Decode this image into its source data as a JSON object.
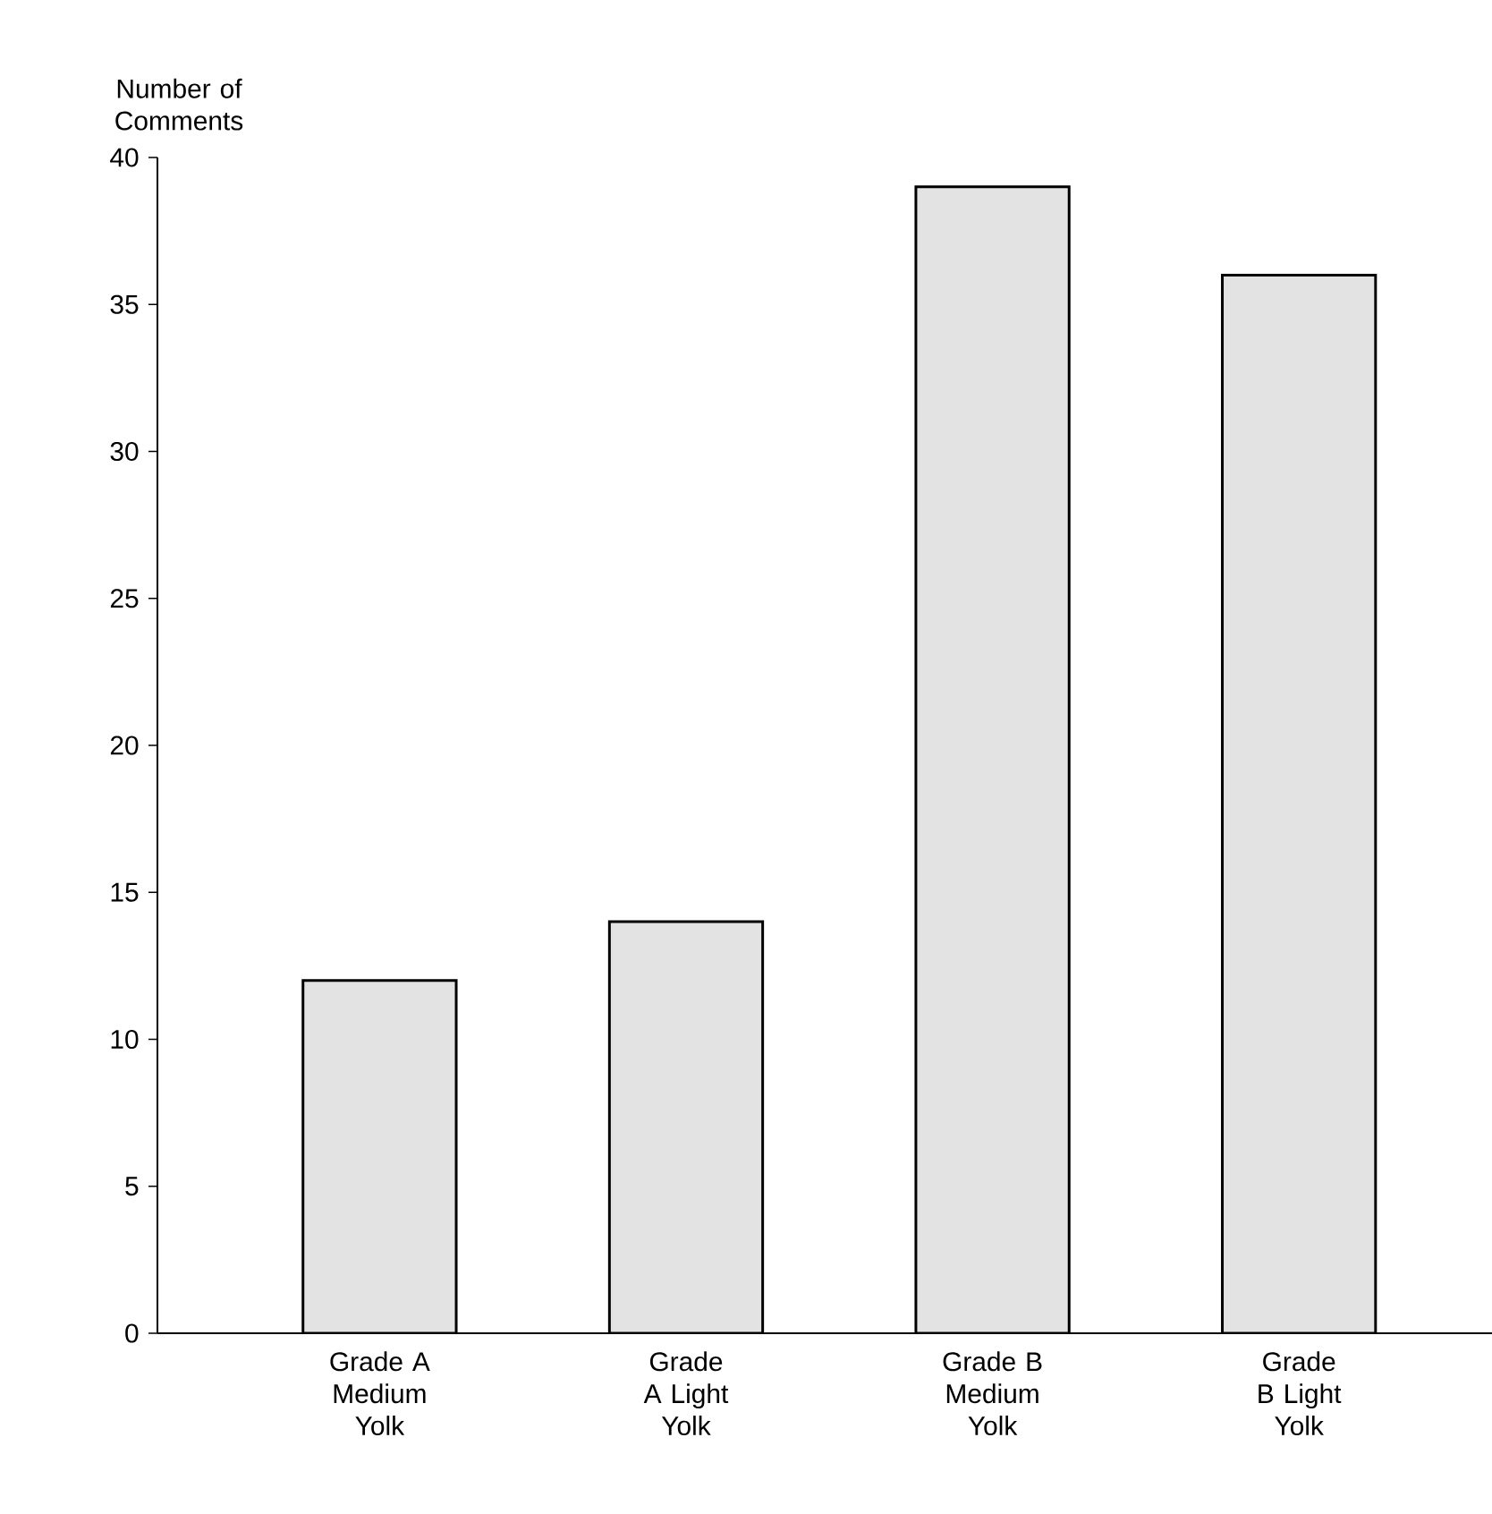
{
  "chart_data": {
    "type": "bar",
    "ylabel": "Number of Comments",
    "categories": [
      "Grade A Medium Yolk",
      "Grade A Light Yolk",
      "Grade B Medium Yolk",
      "Grade B Light Yolk"
    ],
    "values": [
      12,
      14,
      39,
      36
    ],
    "color": "#e3e3e3",
    "ylim": [
      0,
      40
    ],
    "yticks": [
      0,
      5,
      10,
      15,
      20,
      25,
      30,
      35,
      40
    ],
    "grid": false
  }
}
